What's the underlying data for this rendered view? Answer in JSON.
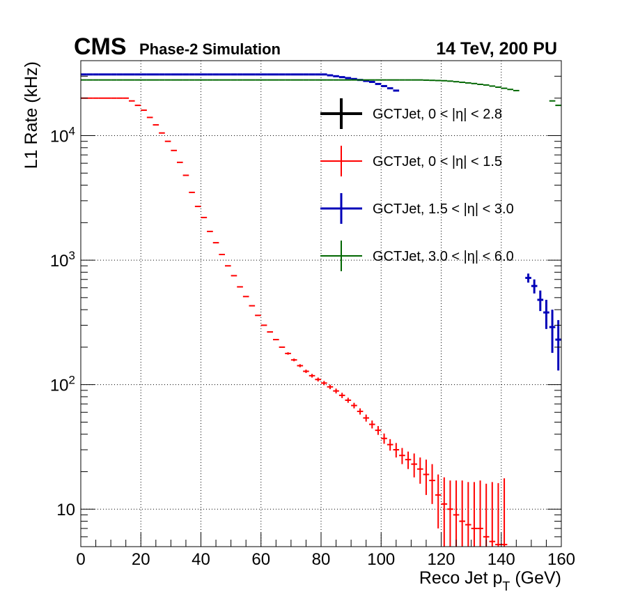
{
  "header": {
    "experiment": "CMS",
    "subtitle": "Phase-2 Simulation",
    "energy_label": "14 TeV, 200 PU"
  },
  "chart_data": {
    "type": "line",
    "xlabel_main": "Reco Jet p",
    "xlabel_sub": "T",
    "xlabel_unit": " (GeV)",
    "ylabel": "L1 Rate (kHz)",
    "xlim": [
      0,
      160
    ],
    "ylim": [
      5,
      40000
    ],
    "yscale": "log",
    "grid": true,
    "legend_position": "top-right",
    "x_ticks": [
      0,
      20,
      40,
      60,
      80,
      100,
      120,
      140,
      160
    ],
    "x_tick_labels": [
      "0",
      "20",
      "40",
      "60",
      "80",
      "100",
      "120",
      "140",
      "160"
    ],
    "y_ticks": [
      {
        "value": 10,
        "base": "10",
        "exp": ""
      },
      {
        "value": 100,
        "base": "10",
        "exp": "2"
      },
      {
        "value": 1000,
        "base": "10",
        "exp": "3"
      },
      {
        "value": 10000,
        "base": "10",
        "exp": "4"
      }
    ],
    "series": [
      {
        "name": "GCTJet, 0 < |η| < 2.8",
        "color": "#000000",
        "width": 4,
        "x": [],
        "y": [],
        "err": []
      },
      {
        "name": "GCTJet, 0 < |η| < 1.5",
        "color": "#ff0000",
        "width": 2,
        "x": [
          1,
          3,
          5,
          7,
          9,
          11,
          13,
          15,
          17,
          19,
          21,
          23,
          25,
          27,
          29,
          31,
          33,
          35,
          37,
          39,
          41,
          43,
          45,
          47,
          49,
          51,
          53,
          55,
          57,
          59,
          61,
          63,
          65,
          67,
          69,
          71,
          73,
          75,
          77,
          79,
          81,
          83,
          85,
          87,
          89,
          91,
          93,
          95,
          97,
          99,
          101,
          103,
          105,
          107,
          109,
          111,
          113,
          115,
          117,
          119,
          121,
          123,
          125,
          127,
          129,
          131,
          133,
          135,
          137,
          139,
          141
        ],
        "y": [
          20000,
          20000,
          20000,
          20000,
          20000,
          20000,
          20000,
          20000,
          19000,
          17500,
          16000,
          14000,
          12200,
          10500,
          9000,
          7600,
          6100,
          4800,
          3500,
          2700,
          2200,
          1700,
          1380,
          1110,
          900,
          750,
          610,
          510,
          430,
          360,
          300,
          265,
          230,
          200,
          178,
          158,
          142,
          128,
          118,
          110,
          103,
          96,
          89,
          82,
          75,
          68,
          61,
          54,
          48,
          43,
          37,
          33,
          30,
          27,
          25,
          23,
          21,
          19,
          17,
          13,
          11,
          10,
          9,
          8,
          7.5,
          7,
          7,
          6,
          5.5,
          5.2,
          5.2
        ],
        "err": [
          0,
          0,
          0,
          0,
          0,
          0,
          0,
          0,
          0,
          0,
          0,
          0,
          0,
          0,
          0,
          0,
          0,
          0,
          0,
          0,
          0,
          0,
          0,
          0,
          0,
          0,
          0,
          0,
          0,
          0,
          0,
          0,
          0,
          0,
          4,
          4,
          4,
          4,
          4,
          4,
          4,
          4,
          4,
          4,
          3.5,
          3.5,
          3.5,
          3.5,
          3.5,
          3.5,
          3.5,
          3.5,
          4,
          4,
          4,
          5,
          5,
          6,
          6,
          6,
          7,
          7,
          8,
          9,
          9,
          9.5,
          10,
          10,
          11,
          11,
          12.5
        ]
      },
      {
        "name": "GCTJet, 1.5 < |η| < 3.0",
        "color": "#0000b8",
        "width": 3,
        "x": [
          1,
          3,
          5,
          7,
          9,
          11,
          13,
          15,
          17,
          19,
          21,
          23,
          25,
          27,
          29,
          31,
          33,
          35,
          37,
          39,
          41,
          43,
          45,
          47,
          49,
          51,
          53,
          55,
          57,
          59,
          61,
          63,
          65,
          67,
          69,
          71,
          73,
          75,
          77,
          79,
          81,
          83,
          85,
          87,
          89,
          91,
          93,
          95,
          97,
          99,
          101,
          103,
          105,
          149,
          151,
          153,
          155,
          157,
          159
        ],
        "y": [
          31000,
          31000,
          31000,
          31000,
          31000,
          31000,
          31000,
          31000,
          31000,
          31000,
          31000,
          31000,
          31000,
          31000,
          31000,
          31000,
          31000,
          31000,
          31000,
          31000,
          31000,
          31000,
          31000,
          31000,
          31000,
          31000,
          31000,
          31000,
          31000,
          31000,
          31000,
          31000,
          31000,
          31000,
          31000,
          31000,
          31000,
          31000,
          31000,
          31000,
          31000,
          30500,
          30000,
          29500,
          29000,
          28500,
          28000,
          27500,
          27000,
          26000,
          25000,
          24000,
          23000,
          720,
          620,
          480,
          380,
          290,
          230
        ],
        "err": [
          0,
          0,
          0,
          0,
          0,
          0,
          0,
          0,
          0,
          0,
          0,
          0,
          0,
          0,
          0,
          0,
          0,
          0,
          0,
          0,
          0,
          0,
          0,
          0,
          0,
          0,
          0,
          0,
          0,
          0,
          0,
          0,
          0,
          0,
          0,
          0,
          0,
          0,
          0,
          0,
          0,
          0,
          0,
          0,
          0,
          0,
          0,
          0,
          0,
          0,
          0,
          0,
          0,
          60,
          80,
          90,
          100,
          110,
          100
        ]
      },
      {
        "name": "GCTJet, 3.0 < |η| < 6.0",
        "color": "#006600",
        "width": 2,
        "x": [
          1,
          3,
          5,
          7,
          9,
          11,
          13,
          15,
          17,
          19,
          21,
          23,
          25,
          27,
          29,
          31,
          33,
          35,
          37,
          39,
          41,
          43,
          45,
          47,
          49,
          51,
          53,
          55,
          57,
          59,
          61,
          63,
          65,
          67,
          69,
          71,
          73,
          75,
          77,
          79,
          81,
          83,
          85,
          87,
          89,
          91,
          93,
          95,
          97,
          99,
          101,
          103,
          105,
          107,
          109,
          111,
          113,
          115,
          117,
          119,
          121,
          123,
          125,
          127,
          129,
          131,
          133,
          135,
          137,
          139,
          141,
          143,
          145,
          157,
          159
        ],
        "y": [
          28000,
          28000,
          28000,
          28000,
          28000,
          28000,
          28000,
          28000,
          28000,
          28000,
          28000,
          28000,
          28000,
          28000,
          28000,
          28000,
          28000,
          28000,
          28000,
          28000,
          28000,
          28000,
          28000,
          28000,
          28000,
          28000,
          28000,
          28000,
          28000,
          28000,
          28000,
          28000,
          28000,
          28000,
          28000,
          28000,
          28000,
          28000,
          28000,
          28000,
          28000,
          28000,
          28000,
          28000,
          28000,
          28000,
          28000,
          28000,
          28000,
          28000,
          28000,
          28000,
          28000,
          28000,
          28000,
          28000,
          28000,
          27900,
          27800,
          27700,
          27600,
          27400,
          27100,
          26800,
          26500,
          26200,
          25800,
          25500,
          25000,
          24500,
          24000,
          23500,
          23000,
          19000,
          17500
        ],
        "err": []
      }
    ]
  }
}
